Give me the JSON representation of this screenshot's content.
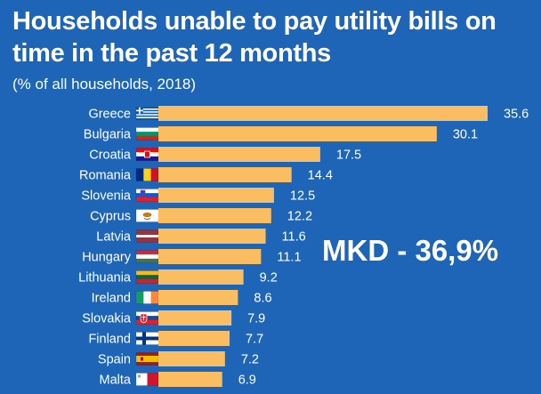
{
  "chart_data": {
    "type": "bar",
    "orientation": "horizontal",
    "title": "Households unable to pay utility bills on time in the past 12 months",
    "subtitle": "(% of all households, 2018)",
    "categories": [
      "Greece",
      "Bulgaria",
      "Croatia",
      "Romania",
      "Slovenia",
      "Cyprus",
      "Latvia",
      "Hungary",
      "Lithuania",
      "Ireland",
      "Slovakia",
      "Finland",
      "Spain",
      "Malta"
    ],
    "values": [
      35.6,
      30.1,
      17.5,
      14.4,
      12.5,
      12.2,
      11.6,
      11.1,
      9.2,
      8.6,
      7.9,
      7.7,
      7.2,
      6.9
    ],
    "value_labels": [
      "35.6",
      "30.1",
      "17.5",
      "14.4",
      "12.5",
      "12.2",
      "11.6",
      "11.1",
      "9.2",
      "8.6",
      "7.9",
      "7.7",
      "7.2",
      "6.9"
    ],
    "flags": [
      "greece-flag",
      "bulgaria-flag",
      "croatia-flag",
      "romania-flag",
      "slovenia-flag",
      "cyprus-flag",
      "latvia-flag",
      "hungary-flag",
      "lithuania-flag",
      "ireland-flag",
      "slovakia-flag",
      "finland-flag",
      "spain-flag",
      "malta-flag"
    ],
    "xlim": [
      0,
      35.6
    ],
    "xlabel": "",
    "ylabel": "",
    "grid": false,
    "legend": "none",
    "annotation": "MKD - 36,9%",
    "colors": {
      "background": "#1e64b7",
      "bar": "#fbbd62",
      "text": "#ffffff"
    }
  }
}
